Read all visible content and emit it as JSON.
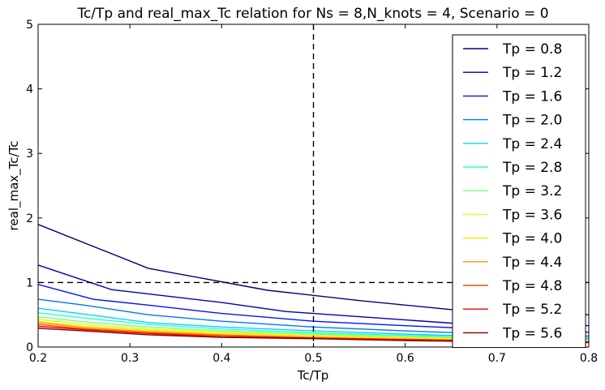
{
  "chart_data": {
    "type": "line",
    "title": "Tc/Tp and real_max_Tc relation for Ns = 8,N_knots = 4, Scenario = 0",
    "xlabel": "Tc/Tp",
    "ylabel": "real_max_Tc/Tc",
    "xlim": [
      0.2,
      0.8
    ],
    "ylim": [
      0,
      5
    ],
    "xticks": [
      0.2,
      0.3,
      0.4,
      0.5,
      0.6,
      0.7,
      0.8
    ],
    "xtick_labels": [
      "0.2",
      "0.3",
      "0.4",
      "0.5",
      "0.6",
      "0.7",
      "0.8"
    ],
    "yticks": [
      0,
      1,
      2,
      3,
      4,
      5
    ],
    "ytick_labels": [
      "0",
      "1",
      "2",
      "3",
      "4",
      "5"
    ],
    "grid": false,
    "legend_position": "right",
    "reference_lines": [
      {
        "orientation": "vertical",
        "value": 0.5,
        "style": "dashed",
        "color": "#000000"
      },
      {
        "orientation": "horizontal",
        "value": 1.0,
        "style": "dashed",
        "color": "#000000"
      }
    ],
    "series": [
      {
        "name": "Tp = 0.8",
        "color": "#00007f",
        "x": [
          0.2,
          0.32,
          0.45,
          0.55,
          0.65,
          0.8
        ],
        "values": [
          1.9,
          1.22,
          0.88,
          0.72,
          0.58,
          0.5
        ]
      },
      {
        "name": "Tp = 1.2",
        "color": "#0000b2",
        "x": [
          0.2,
          0.28,
          0.4,
          0.47,
          0.55,
          0.65,
          0.8
        ],
        "values": [
          1.27,
          0.89,
          0.69,
          0.55,
          0.47,
          0.37,
          0.33
        ]
      },
      {
        "name": "Tp = 1.6",
        "color": "#0014ff",
        "x": [
          0.2,
          0.26,
          0.32,
          0.4,
          0.5,
          0.6,
          0.7,
          0.8
        ],
        "values": [
          0.97,
          0.74,
          0.65,
          0.52,
          0.4,
          0.33,
          0.27,
          0.23
        ]
      },
      {
        "name": "Tp = 2.0",
        "color": "#0074ff",
        "x": [
          0.2,
          0.25,
          0.32,
          0.4,
          0.5,
          0.6,
          0.7,
          0.8
        ],
        "values": [
          0.74,
          0.65,
          0.5,
          0.4,
          0.31,
          0.25,
          0.2,
          0.17
        ]
      },
      {
        "name": "Tp = 2.4",
        "color": "#00d4ff",
        "x": [
          0.2,
          0.25,
          0.32,
          0.4,
          0.5,
          0.6,
          0.7,
          0.8
        ],
        "values": [
          0.6,
          0.51,
          0.38,
          0.31,
          0.25,
          0.2,
          0.16,
          0.14
        ]
      },
      {
        "name": "Tp = 2.8",
        "color": "#2affcd",
        "x": [
          0.2,
          0.25,
          0.32,
          0.4,
          0.5,
          0.6,
          0.7,
          0.8
        ],
        "values": [
          0.53,
          0.45,
          0.35,
          0.28,
          0.22,
          0.18,
          0.15,
          0.13
        ]
      },
      {
        "name": "Tp = 3.2",
        "color": "#7dff7a",
        "x": [
          0.2,
          0.25,
          0.32,
          0.4,
          0.5,
          0.6,
          0.7,
          0.8
        ],
        "values": [
          0.47,
          0.39,
          0.31,
          0.25,
          0.2,
          0.16,
          0.13,
          0.11
        ]
      },
      {
        "name": "Tp = 3.6",
        "color": "#d0ff26",
        "x": [
          0.2,
          0.25,
          0.32,
          0.4,
          0.5,
          0.6,
          0.7,
          0.8
        ],
        "values": [
          0.43,
          0.35,
          0.28,
          0.23,
          0.18,
          0.15,
          0.12,
          0.1
        ]
      },
      {
        "name": "Tp = 4.0",
        "color": "#ffe500",
        "x": [
          0.2,
          0.25,
          0.32,
          0.4,
          0.5,
          0.6,
          0.7,
          0.8
        ],
        "values": [
          0.4,
          0.32,
          0.26,
          0.21,
          0.17,
          0.14,
          0.11,
          0.09
        ]
      },
      {
        "name": "Tp = 4.4",
        "color": "#ff9400",
        "x": [
          0.2,
          0.25,
          0.32,
          0.4,
          0.5,
          0.6,
          0.7,
          0.8
        ],
        "values": [
          0.38,
          0.3,
          0.24,
          0.19,
          0.15,
          0.12,
          0.1,
          0.08
        ]
      },
      {
        "name": "Tp = 4.8",
        "color": "#ff4a00",
        "x": [
          0.2,
          0.25,
          0.32,
          0.4,
          0.5,
          0.6,
          0.7,
          0.8
        ],
        "values": [
          0.35,
          0.28,
          0.22,
          0.18,
          0.14,
          0.12,
          0.09,
          0.08
        ]
      },
      {
        "name": "Tp = 5.2",
        "color": "#ed0400",
        "x": [
          0.2,
          0.25,
          0.32,
          0.4,
          0.5,
          0.6,
          0.7,
          0.8
        ],
        "values": [
          0.32,
          0.27,
          0.21,
          0.16,
          0.14,
          0.11,
          0.09,
          0.07
        ]
      },
      {
        "name": "Tp = 5.6",
        "color": "#7f0000",
        "x": [
          0.2,
          0.25,
          0.32,
          0.4,
          0.5,
          0.6,
          0.7,
          0.8
        ],
        "values": [
          0.29,
          0.25,
          0.19,
          0.15,
          0.13,
          0.1,
          0.08,
          0.07
        ]
      }
    ]
  }
}
